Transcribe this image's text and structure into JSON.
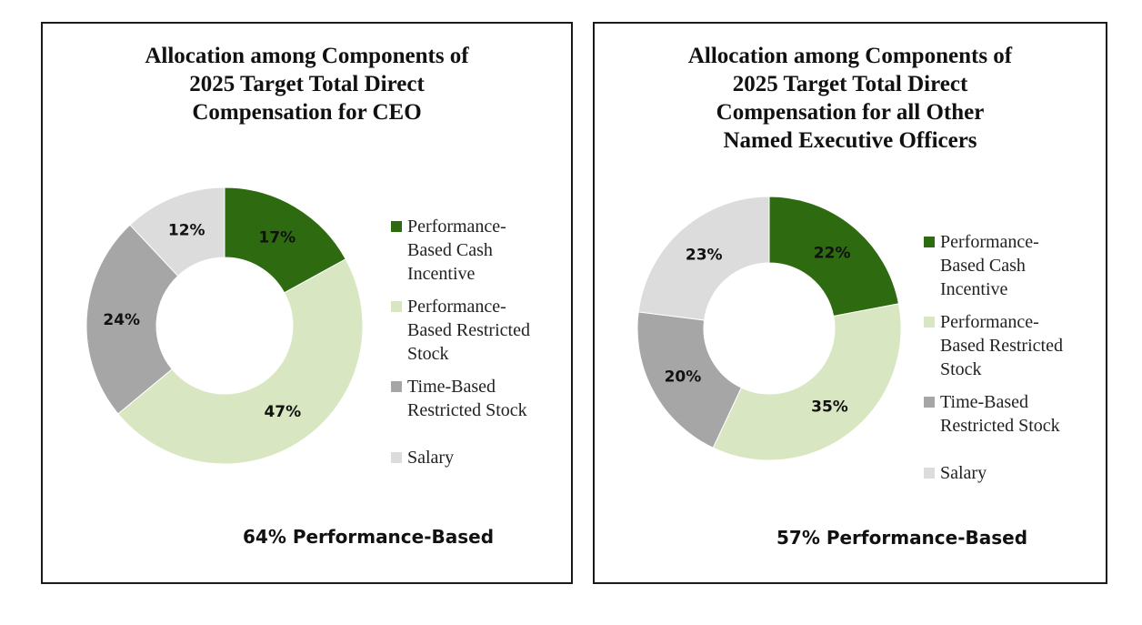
{
  "chart_data": [
    {
      "type": "pie",
      "variant": "donut",
      "title_lines": [
        "Allocation among Components of",
        "2025 Target Total Direct",
        "Compensation for CEO"
      ],
      "slices": [
        {
          "label": "Performance-Based Cash Incentive",
          "value": 17,
          "display": "17%",
          "color": "#2d6a10"
        },
        {
          "label": "Performance-Based Restricted Stock",
          "value": 47,
          "display": "47%",
          "color": "#d8e6c2"
        },
        {
          "label": "Time-Based Restricted Stock",
          "value": 24,
          "display": "24%",
          "color": "#a6a6a6"
        },
        {
          "label": "Salary",
          "value": 12,
          "display": "12%",
          "color": "#dcdcdc"
        }
      ],
      "legend": [
        {
          "text": "Performance-\nBased Cash\nIncentive",
          "color": "#2d6a10"
        },
        {
          "text": "Performance-\nBased Restricted\nStock",
          "color": "#d8e6c2"
        },
        {
          "text": "Time-Based\nRestricted Stock",
          "color": "#a6a6a6"
        },
        {
          "text": "Salary",
          "color": "#dcdcdc"
        }
      ],
      "legend_position": "right",
      "footnote": "64% Performance-Based"
    },
    {
      "type": "pie",
      "variant": "donut",
      "title_lines": [
        "Allocation among Components of",
        "2025 Target Total Direct",
        "Compensation for all Other",
        "Named Executive Officers"
      ],
      "slices": [
        {
          "label": "Performance-Based Cash Incentive",
          "value": 22,
          "display": "22%",
          "color": "#2d6a10"
        },
        {
          "label": "Performance-Based Restricted Stock",
          "value": 35,
          "display": "35%",
          "color": "#d8e6c2"
        },
        {
          "label": "Time-Based Restricted Stock",
          "value": 20,
          "display": "20%",
          "color": "#a6a6a6"
        },
        {
          "label": "Salary",
          "value": 23,
          "display": "23%",
          "color": "#dcdcdc"
        }
      ],
      "legend": [
        {
          "text": "Performance-\nBased Cash\nIncentive",
          "color": "#2d6a10"
        },
        {
          "text": "Performance-\nBased Restricted\nStock",
          "color": "#d8e6c2"
        },
        {
          "text": "Time-Based\nRestricted Stock",
          "color": "#a6a6a6"
        },
        {
          "text": "Salary",
          "color": "#dcdcdc"
        }
      ],
      "legend_position": "right",
      "footnote": "57% Performance-Based"
    }
  ]
}
